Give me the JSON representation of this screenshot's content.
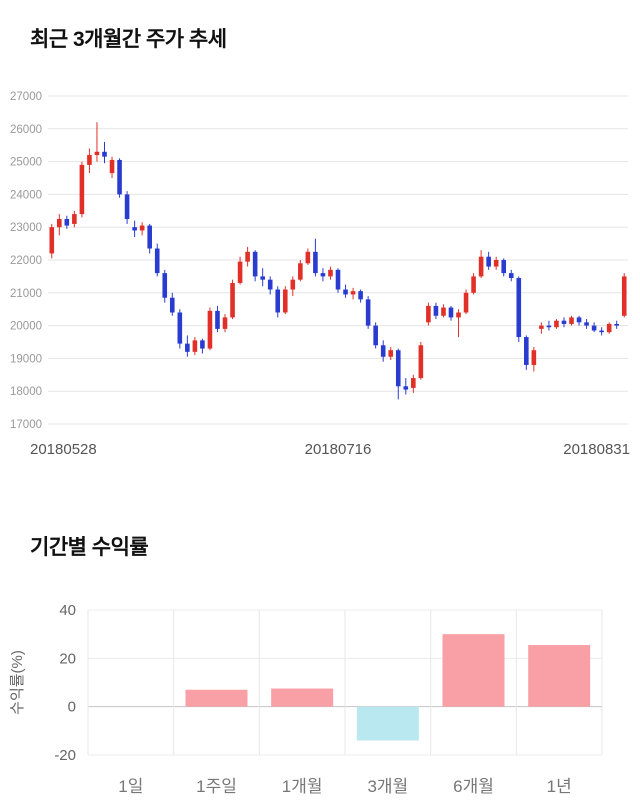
{
  "page": {
    "background": "#ffffff"
  },
  "chart_data": [
    {
      "type": "candlestick",
      "title": "최근 3개월간 주가 추세",
      "ylim": [
        17000,
        27000
      ],
      "yticks": [
        17000,
        18000,
        19000,
        20000,
        21000,
        22000,
        23000,
        24000,
        25000,
        26000,
        27000
      ],
      "xtick_labels": [
        "20180528",
        "20180716",
        "20180831"
      ],
      "up_color": "#e03028",
      "down_color": "#2a3cd0",
      "grid_color": "#e5e5e5",
      "grid": true,
      "legend": "none",
      "candles_format": "open_high_low_close",
      "candles": [
        [
          22200,
          23100,
          22050,
          23000
        ],
        [
          23000,
          23400,
          22750,
          23250
        ],
        [
          23250,
          23350,
          22950,
          23050
        ],
        [
          23100,
          23500,
          23000,
          23400
        ],
        [
          23400,
          25000,
          23300,
          24900
        ],
        [
          24900,
          25400,
          24650,
          25200
        ],
        [
          25200,
          26200,
          25000,
          25300
        ],
        [
          25300,
          25600,
          24950,
          25150
        ],
        [
          24650,
          25150,
          24500,
          25050
        ],
        [
          25050,
          25100,
          23900,
          24000
        ],
        [
          24000,
          24100,
          23100,
          23250
        ],
        [
          23000,
          23200,
          22700,
          22900
        ],
        [
          22900,
          23150,
          22750,
          23050
        ],
        [
          23050,
          23100,
          22200,
          22350
        ],
        [
          22350,
          22500,
          21500,
          21600
        ],
        [
          21600,
          21700,
          20700,
          20850
        ],
        [
          20850,
          21000,
          20300,
          20400
        ],
        [
          20400,
          20500,
          19300,
          19450
        ],
        [
          19450,
          19700,
          19050,
          19200
        ],
        [
          19200,
          19650,
          19100,
          19550
        ],
        [
          19550,
          19600,
          19150,
          19300
        ],
        [
          19300,
          20550,
          19250,
          20450
        ],
        [
          20450,
          20600,
          19800,
          19900
        ],
        [
          19900,
          20350,
          19800,
          20250
        ],
        [
          20250,
          21400,
          20200,
          21300
        ],
        [
          21300,
          22100,
          21250,
          21950
        ],
        [
          21950,
          22400,
          21800,
          22250
        ],
        [
          22250,
          22300,
          21350,
          21500
        ],
        [
          21500,
          21750,
          21200,
          21400
        ],
        [
          21400,
          21500,
          20950,
          21100
        ],
        [
          21100,
          21200,
          20250,
          20400
        ],
        [
          20400,
          21200,
          20350,
          21100
        ],
        [
          21100,
          21500,
          20900,
          21400
        ],
        [
          21400,
          22000,
          21350,
          21900
        ],
        [
          21900,
          22350,
          21850,
          22250
        ],
        [
          22250,
          22650,
          21500,
          21600
        ],
        [
          21600,
          21750,
          21350,
          21500
        ],
        [
          21500,
          21800,
          21400,
          21700
        ],
        [
          21700,
          21750,
          21000,
          21100
        ],
        [
          21100,
          21250,
          20850,
          20950
        ],
        [
          20950,
          21150,
          20800,
          21050
        ],
        [
          21050,
          21100,
          20700,
          20800
        ],
        [
          20800,
          20900,
          19900,
          20000
        ],
        [
          20000,
          20100,
          19300,
          19400
        ],
        [
          19400,
          19550,
          18900,
          19050
        ],
        [
          19050,
          19350,
          18950,
          19250
        ],
        [
          19250,
          19300,
          17750,
          18150
        ],
        [
          18150,
          18400,
          17900,
          18050
        ],
        [
          18100,
          18500,
          17950,
          18400
        ],
        [
          18400,
          19500,
          18350,
          19400
        ],
        [
          20100,
          20700,
          20000,
          20600
        ],
        [
          20600,
          20700,
          20200,
          20300
        ],
        [
          20300,
          20650,
          20250,
          20550
        ],
        [
          20550,
          20600,
          20150,
          20250
        ],
        [
          20250,
          20500,
          19650,
          20400
        ],
        [
          20400,
          21100,
          20350,
          21000
        ],
        [
          21000,
          21600,
          20950,
          21500
        ],
        [
          21500,
          22300,
          21450,
          22100
        ],
        [
          22100,
          22250,
          21700,
          21800
        ],
        [
          21800,
          22100,
          21700,
          22000
        ],
        [
          22000,
          22050,
          21500,
          21600
        ],
        [
          21600,
          21700,
          21350,
          21450
        ],
        [
          21450,
          21500,
          19500,
          19650
        ],
        [
          19650,
          19700,
          18650,
          18800
        ],
        [
          18800,
          19350,
          18600,
          19250
        ],
        [
          19900,
          20100,
          19750,
          20000
        ],
        [
          20000,
          20150,
          19850,
          19950
        ],
        [
          19950,
          20200,
          19900,
          20150
        ],
        [
          20150,
          20250,
          19950,
          20050
        ],
        [
          20050,
          20300,
          20000,
          20250
        ],
        [
          20250,
          20300,
          20000,
          20100
        ],
        [
          20100,
          20200,
          19900,
          20000
        ],
        [
          20000,
          20100,
          19800,
          19850
        ],
        [
          19850,
          19950,
          19700,
          19800
        ],
        [
          19800,
          20100,
          19750,
          20050
        ],
        [
          20050,
          20150,
          19900,
          20000
        ],
        [
          20300,
          21600,
          20250,
          21500
        ]
      ]
    },
    {
      "type": "bar",
      "title": "기간별 수익률",
      "ylabel": "수익률(%)",
      "categories": [
        "1일",
        "1주일",
        "1개월",
        "3개월",
        "6개월",
        "1년"
      ],
      "values": [
        0,
        7,
        7.5,
        -14,
        30,
        25.5
      ],
      "ylim": [
        -20,
        40
      ],
      "yticks": [
        40,
        20,
        0,
        -20
      ],
      "grid": true,
      "legend": "none",
      "positive_color": "#f8a0a5",
      "negative_color": "#b9e8f0",
      "zero_line_color": "#c4c4c4",
      "grid_color": "#ececec",
      "separator_color": "#e7e7e7"
    }
  ]
}
